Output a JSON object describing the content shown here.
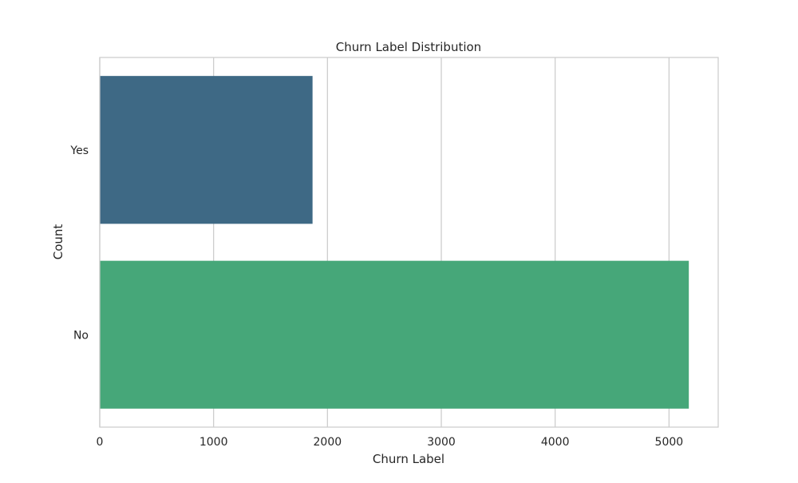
{
  "chart_data": {
    "type": "bar",
    "orientation": "horizontal",
    "title": "Churn Label Distribution",
    "xlabel": "Churn Label",
    "ylabel": "Count",
    "categories": [
      "Yes",
      "No"
    ],
    "values": [
      1869,
      5174
    ],
    "xlim": [
      0,
      5432
    ],
    "xticks": [
      0,
      1000,
      2000,
      3000,
      4000,
      5000
    ],
    "grid": true,
    "colors": [
      "#3e6985",
      "#46a779"
    ]
  }
}
